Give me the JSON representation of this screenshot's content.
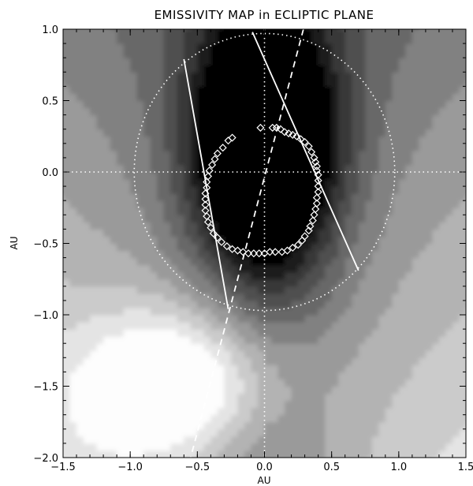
{
  "chart_data": {
    "type": "heatmap",
    "title": "EMISSIVITY MAP in ECLIPTIC PLANE",
    "xlabel": "AU",
    "ylabel": "AU",
    "xlim": [
      -1.5,
      1.5
    ],
    "ylim": [
      -2.0,
      1.0
    ],
    "x_ticks": [
      -1.5,
      -1.0,
      -0.5,
      0.0,
      0.5,
      1.0,
      1.5
    ],
    "x_tick_labels": [
      "−1.5",
      "−1.0",
      "−0.5",
      "0.0",
      "0.5",
      "1.0",
      "1.5"
    ],
    "y_ticks": [
      -2.0,
      -1.5,
      -1.0,
      -0.5,
      0.0,
      0.5,
      1.0
    ],
    "y_tick_labels": [
      "−2.0",
      "−1.5",
      "−1.0",
      "−0.5",
      "0.0",
      "0.5",
      "1.0"
    ],
    "colormap": "grayscale, dark = low emissivity, white = high emissivity",
    "emissivity_field": {
      "dark_core_center": [
        0.0,
        0.15
      ],
      "bright_region_center": [
        -0.55,
        -1.45
      ]
    },
    "reference_lines": {
      "earth_orbit_circle": {
        "center": [
          0.0,
          0.0
        ],
        "radius": 0.97,
        "style": "dotted"
      },
      "axis_crosshair": {
        "style": "dotted"
      }
    },
    "lines_of_sight": [
      {
        "style": "solid",
        "from": [
          -0.6,
          0.79
        ],
        "to": [
          -0.27,
          -0.96
        ]
      },
      {
        "style": "solid",
        "from": [
          -0.09,
          0.98
        ],
        "to": [
          0.7,
          -0.69
        ]
      },
      {
        "style": "dashed",
        "from": [
          0.29,
          1.0
        ],
        "to": [
          -0.55,
          -2.0
        ]
      }
    ],
    "trajectory_points": [
      [
        -0.03,
        0.31
      ],
      [
        0.06,
        0.31
      ],
      [
        0.09,
        0.31
      ],
      [
        0.12,
        0.3
      ],
      [
        0.15,
        0.28
      ],
      [
        0.18,
        0.27
      ],
      [
        0.21,
        0.26
      ],
      [
        0.24,
        0.25
      ],
      [
        0.27,
        0.23
      ],
      [
        0.3,
        0.21
      ],
      [
        0.33,
        0.18
      ],
      [
        0.35,
        0.14
      ],
      [
        0.37,
        0.1
      ],
      [
        0.38,
        0.07
      ],
      [
        0.39,
        0.04
      ],
      [
        0.39,
        0.01
      ],
      [
        0.4,
        -0.02
      ],
      [
        0.4,
        -0.06
      ],
      [
        0.4,
        -0.1
      ],
      [
        0.4,
        -0.14
      ],
      [
        0.39,
        -0.18
      ],
      [
        0.39,
        -0.22
      ],
      [
        0.38,
        -0.26
      ],
      [
        0.37,
        -0.3
      ],
      [
        0.36,
        -0.34
      ],
      [
        0.34,
        -0.38
      ],
      [
        0.33,
        -0.41
      ],
      [
        0.3,
        -0.45
      ],
      [
        0.28,
        -0.48
      ],
      [
        0.25,
        -0.51
      ],
      [
        0.21,
        -0.53
      ],
      [
        0.17,
        -0.55
      ],
      [
        0.13,
        -0.56
      ],
      [
        0.08,
        -0.56
      ],
      [
        0.04,
        -0.56
      ],
      [
        0.0,
        -0.57
      ],
      [
        -0.04,
        -0.57
      ],
      [
        -0.08,
        -0.57
      ],
      [
        -0.12,
        -0.57
      ],
      [
        -0.16,
        -0.56
      ],
      [
        -0.2,
        -0.55
      ],
      [
        -0.24,
        -0.54
      ],
      [
        -0.28,
        -0.52
      ],
      [
        -0.32,
        -0.49
      ],
      [
        -0.35,
        -0.46
      ],
      [
        -0.38,
        -0.43
      ],
      [
        -0.4,
        -0.39
      ],
      [
        -0.42,
        -0.35
      ],
      [
        -0.43,
        -0.31
      ],
      [
        -0.44,
        -0.27
      ],
      [
        -0.44,
        -0.23
      ],
      [
        -0.44,
        -0.19
      ],
      [
        -0.44,
        -0.15
      ],
      [
        -0.43,
        -0.11
      ],
      [
        -0.43,
        -0.07
      ],
      [
        -0.42,
        -0.03
      ],
      [
        -0.41,
        0.01
      ],
      [
        -0.39,
        0.05
      ],
      [
        -0.37,
        0.09
      ],
      [
        -0.35,
        0.13
      ],
      [
        -0.31,
        0.17
      ],
      [
        -0.27,
        0.22
      ],
      [
        -0.24,
        0.24
      ]
    ]
  }
}
